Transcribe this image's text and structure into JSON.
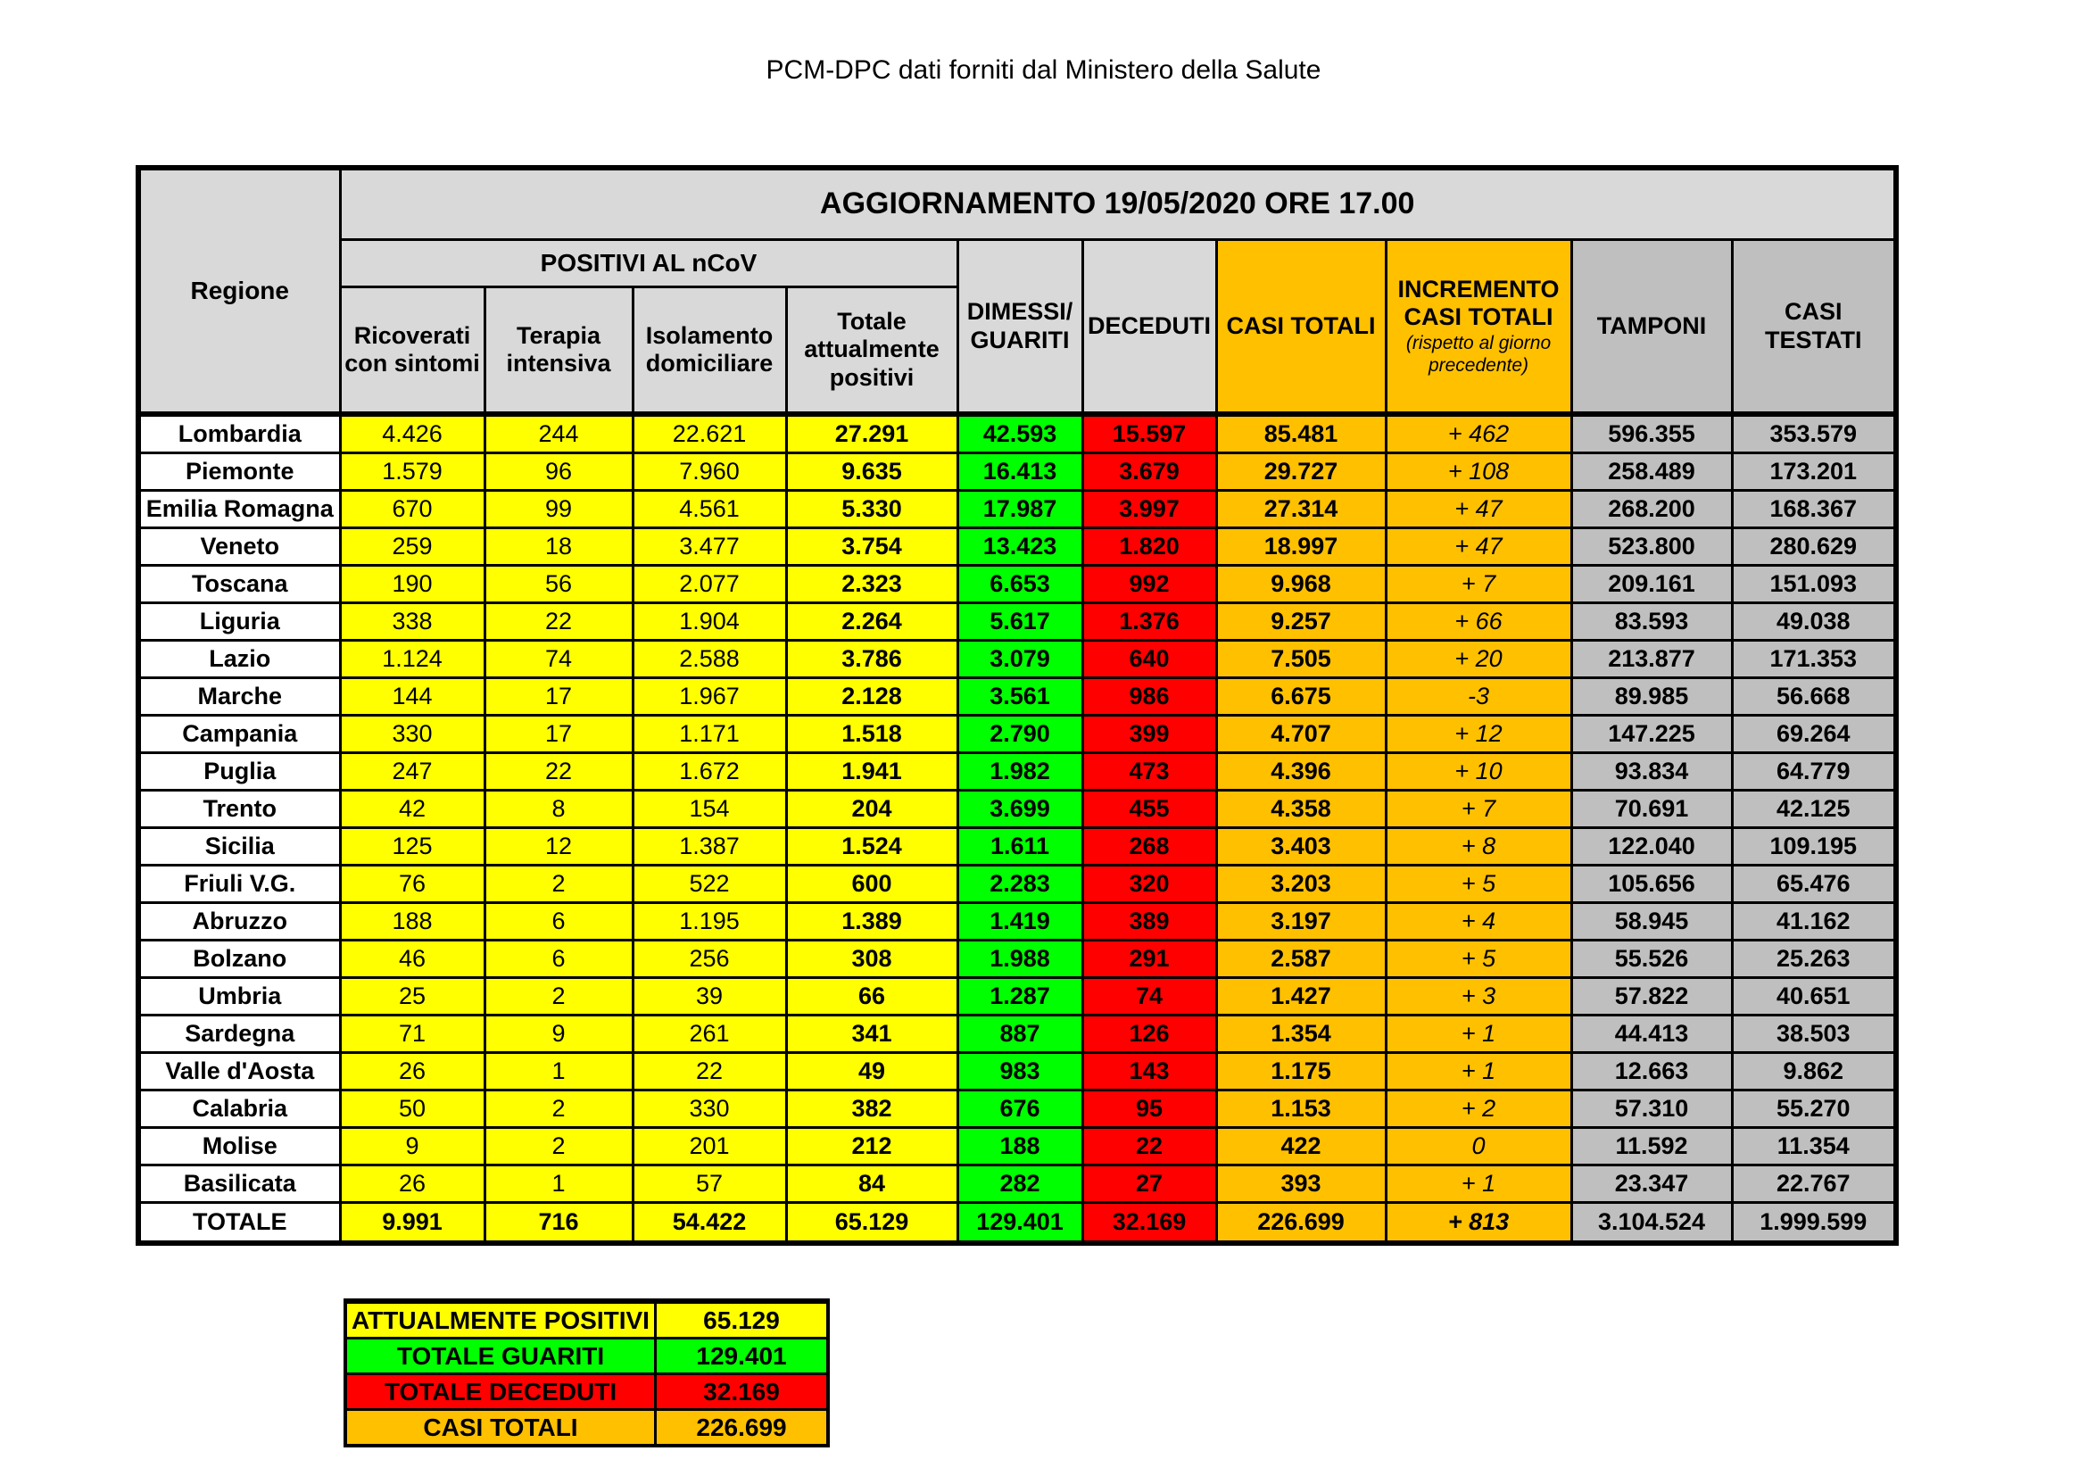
{
  "page_title": "PCM-DPC dati forniti dal Ministero della Salute",
  "table": {
    "update_header": "AGGIORNAMENTO 19/05/2020 ORE 17.00",
    "region_header": "Regione",
    "positivi_group_header": "POSITIVI AL nCoV",
    "sub_headers": [
      "Ricoverati con sintomi",
      "Terapia intensiva",
      "Isolamento domiciliare",
      "Totale attualmente positivi"
    ],
    "col_headers": {
      "dimessi_guariti": "DIMESSI/ GUARITI",
      "deceduti": "DECEDUTI",
      "casi_totali": "CASI TOTALI",
      "incremento_title": "INCREMENTO CASI  TOTALI",
      "incremento_note": "(rispetto al giorno precedente)",
      "tamponi": "TAMPONI",
      "casi_testati": "CASI TESTATI"
    },
    "rows": [
      [
        "Lombardia",
        "4.426",
        "244",
        "22.621",
        "27.291",
        "42.593",
        "15.597",
        "85.481",
        "+ 462",
        "596.355",
        "353.579"
      ],
      [
        "Piemonte",
        "1.579",
        "96",
        "7.960",
        "9.635",
        "16.413",
        "3.679",
        "29.727",
        "+ 108",
        "258.489",
        "173.201"
      ],
      [
        "Emilia Romagna",
        "670",
        "99",
        "4.561",
        "5.330",
        "17.987",
        "3.997",
        "27.314",
        "+ 47",
        "268.200",
        "168.367"
      ],
      [
        "Veneto",
        "259",
        "18",
        "3.477",
        "3.754",
        "13.423",
        "1.820",
        "18.997",
        "+ 47",
        "523.800",
        "280.629"
      ],
      [
        "Toscana",
        "190",
        "56",
        "2.077",
        "2.323",
        "6.653",
        "992",
        "9.968",
        "+ 7",
        "209.161",
        "151.093"
      ],
      [
        "Liguria",
        "338",
        "22",
        "1.904",
        "2.264",
        "5.617",
        "1.376",
        "9.257",
        "+ 66",
        "83.593",
        "49.038"
      ],
      [
        "Lazio",
        "1.124",
        "74",
        "2.588",
        "3.786",
        "3.079",
        "640",
        "7.505",
        "+ 20",
        "213.877",
        "171.353"
      ],
      [
        "Marche",
        "144",
        "17",
        "1.967",
        "2.128",
        "3.561",
        "986",
        "6.675",
        "-3",
        "89.985",
        "56.668"
      ],
      [
        "Campania",
        "330",
        "17",
        "1.171",
        "1.518",
        "2.790",
        "399",
        "4.707",
        "+ 12",
        "147.225",
        "69.264"
      ],
      [
        "Puglia",
        "247",
        "22",
        "1.672",
        "1.941",
        "1.982",
        "473",
        "4.396",
        "+ 10",
        "93.834",
        "64.779"
      ],
      [
        "Trento",
        "42",
        "8",
        "154",
        "204",
        "3.699",
        "455",
        "4.358",
        "+ 7",
        "70.691",
        "42.125"
      ],
      [
        "Sicilia",
        "125",
        "12",
        "1.387",
        "1.524",
        "1.611",
        "268",
        "3.403",
        "+ 8",
        "122.040",
        "109.195"
      ],
      [
        "Friuli V.G.",
        "76",
        "2",
        "522",
        "600",
        "2.283",
        "320",
        "3.203",
        "+ 5",
        "105.656",
        "65.476"
      ],
      [
        "Abruzzo",
        "188",
        "6",
        "1.195",
        "1.389",
        "1.419",
        "389",
        "3.197",
        "+ 4",
        "58.945",
        "41.162"
      ],
      [
        "Bolzano",
        "46",
        "6",
        "256",
        "308",
        "1.988",
        "291",
        "2.587",
        "+ 5",
        "55.526",
        "25.263"
      ],
      [
        "Umbria",
        "25",
        "2",
        "39",
        "66",
        "1.287",
        "74",
        "1.427",
        "+ 3",
        "57.822",
        "40.651"
      ],
      [
        "Sardegna",
        "71",
        "9",
        "261",
        "341",
        "887",
        "126",
        "1.354",
        "+ 1",
        "44.413",
        "38.503"
      ],
      [
        "Valle d'Aosta",
        "26",
        "1",
        "22",
        "49",
        "983",
        "143",
        "1.175",
        "+ 1",
        "12.663",
        "9.862"
      ],
      [
        "Calabria",
        "50",
        "2",
        "330",
        "382",
        "676",
        "95",
        "1.153",
        "+ 2",
        "57.310",
        "55.270"
      ],
      [
        "Molise",
        "9",
        "2",
        "201",
        "212",
        "188",
        "22",
        "422",
        "0",
        "11.592",
        "11.354"
      ],
      [
        "Basilicata",
        "26",
        "1",
        "57",
        "84",
        "282",
        "27",
        "393",
        "+ 1",
        "23.347",
        "22.767"
      ]
    ],
    "total_row": [
      "TOTALE",
      "9.991",
      "716",
      "54.422",
      "65.129",
      "129.401",
      "32.169",
      "226.699",
      "+ 813",
      "3.104.524",
      "1.999.599"
    ]
  },
  "summary": {
    "rows": [
      {
        "label": "ATTUALMENTE POSITIVI",
        "value": "65.129",
        "color": "#FFFF00"
      },
      {
        "label": "TOTALE GUARITI",
        "value": "129.401",
        "color": "#00FF00"
      },
      {
        "label": "TOTALE DECEDUTI",
        "value": "32.169",
        "color": "#FF0000"
      },
      {
        "label": "CASI TOTALI",
        "value": "226.699",
        "color": "#FFC000"
      }
    ]
  },
  "colors": {
    "positivi_yellow": "#FFFF00",
    "guariti_green": "#00FF00",
    "deceduti_red": "#FF0000",
    "casi_totali_orange": "#FFC000",
    "header_light_gray": "#D9D9D9",
    "tamponi_gray": "#BFBFBF",
    "border_black": "#000000",
    "background_white": "#FFFFFF"
  }
}
